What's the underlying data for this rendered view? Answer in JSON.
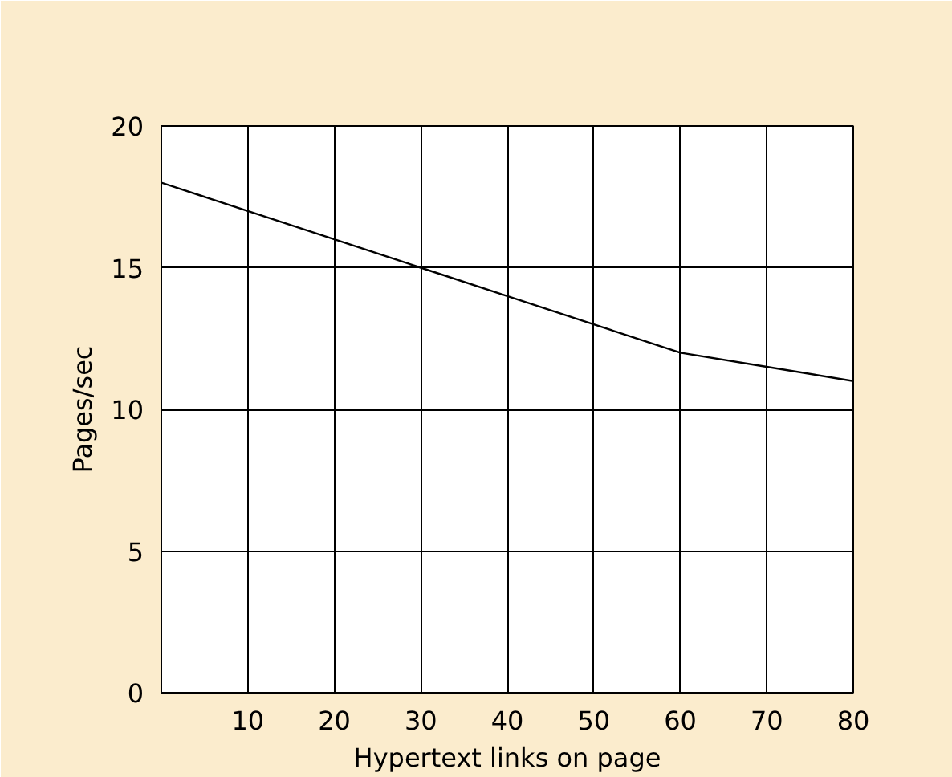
{
  "chart_data": {
    "type": "line",
    "xlabel": "Hypertext links on page",
    "ylabel": "Pages/sec",
    "x": [
      0,
      10,
      20,
      30,
      40,
      50,
      60,
      70,
      80
    ],
    "series": [
      {
        "color": "#000000",
        "values": [
          18,
          17,
          16,
          15,
          14,
          13,
          12,
          11.5,
          11
        ]
      }
    ],
    "xlim": [
      0,
      80
    ],
    "xticks": [
      {
        "value": 0,
        "label": null
      },
      10,
      20,
      30,
      40,
      50,
      60,
      70,
      80
    ],
    "ylim": [
      0,
      20
    ],
    "yticks": [
      0,
      5,
      10,
      15,
      20
    ],
    "grid": true,
    "marker": "none",
    "line_style": "solid"
  }
}
